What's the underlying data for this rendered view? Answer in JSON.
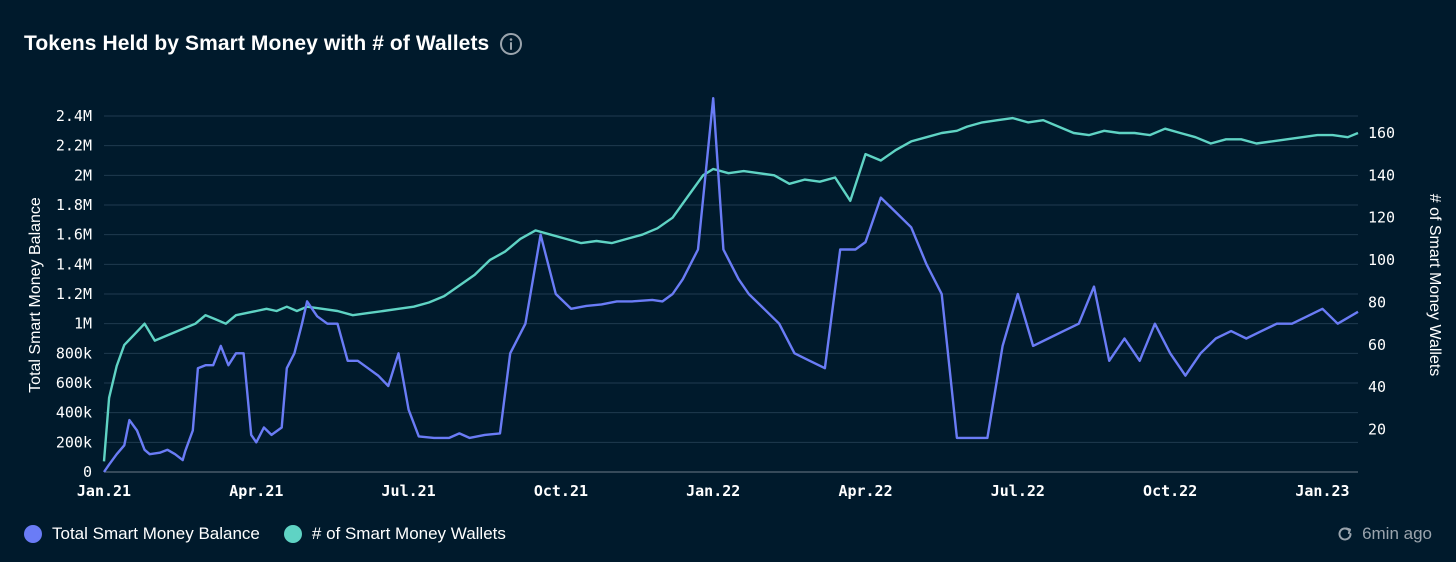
{
  "colors": {
    "background": "#001a2c",
    "balance_series": "#6a7cf6",
    "wallets_series": "#5fd3c4",
    "grid": "#1f3a4f",
    "muted_text": "#9aa4ad"
  },
  "header": {
    "title": "Tokens Held by Smart Money with # of Wallets",
    "info_icon": "info-icon"
  },
  "footer": {
    "updated_text": "6min ago",
    "refresh_icon": "refresh-icon"
  },
  "chart_data": {
    "type": "line",
    "title": "Tokens Held by Smart Money with # of Wallets",
    "xlabel": "",
    "ylabel": "Total Smart Money Balance",
    "y2label": "# of Smart Money Wallets",
    "x_ticks": [
      "Jan.21",
      "Apr.21",
      "Jul.21",
      "Oct.21",
      "Jan.22",
      "Apr.22",
      "Jul.22",
      "Oct.22",
      "Jan.23"
    ],
    "x_range": [
      0,
      24.7
    ],
    "ylim": [
      0,
      2400000
    ],
    "y_ticks": [
      0,
      200000,
      400000,
      600000,
      800000,
      1000000,
      1200000,
      1400000,
      1600000,
      1800000,
      2000000,
      2200000,
      2400000
    ],
    "y_tick_labels": [
      "0",
      "200k",
      "400k",
      "600k",
      "800k",
      "1M",
      "1.2M",
      "1.4M",
      "1.6M",
      "1.8M",
      "2M",
      "2.2M",
      "2.4M"
    ],
    "y2lim": [
      0,
      168
    ],
    "y2_ticks": [
      20,
      40,
      60,
      80,
      100,
      120,
      140,
      160
    ],
    "y2_tick_labels": [
      "20",
      "40",
      "60",
      "80",
      "100",
      "120",
      "140",
      "160"
    ],
    "grid": true,
    "legend": "bottom-left",
    "series": [
      {
        "name": "Total Smart Money Balance",
        "axis": "left",
        "x": [
          0,
          0.1,
          0.25,
          0.4,
          0.5,
          0.65,
          0.8,
          0.9,
          1.1,
          1.25,
          1.4,
          1.55,
          1.6,
          1.75,
          1.85,
          2.0,
          2.15,
          2.3,
          2.45,
          2.6,
          2.75,
          2.9,
          3.0,
          3.15,
          3.3,
          3.5,
          3.6,
          3.75,
          3.9,
          4.0,
          4.2,
          4.4,
          4.6,
          4.8,
          5.0,
          5.2,
          5.4,
          5.6,
          5.8,
          6.0,
          6.2,
          6.5,
          6.8,
          7.0,
          7.2,
          7.5,
          7.8,
          8.0,
          8.3,
          8.6,
          8.9,
          9.2,
          9.5,
          9.8,
          10.1,
          10.4,
          10.8,
          11.0,
          11.2,
          11.4,
          11.7,
          12.0,
          12.2,
          12.5,
          12.7,
          13.0,
          13.3,
          13.6,
          13.9,
          14.2,
          14.5,
          14.8,
          15.0,
          15.3,
          15.6,
          15.9,
          16.2,
          16.5,
          16.8,
          17.1,
          17.4,
          17.7,
          18.0,
          18.3,
          18.6,
          18.9,
          19.2,
          19.5,
          19.8,
          20.1,
          20.4,
          20.7,
          21.0,
          21.3,
          21.6,
          21.9,
          22.2,
          22.5,
          22.8,
          23.1,
          23.4,
          23.7,
          24.0,
          24.3,
          24.7
        ],
        "values": [
          0,
          50000,
          120000,
          180000,
          350000,
          280000,
          150000,
          120000,
          130000,
          150000,
          120000,
          80000,
          140000,
          280000,
          700000,
          720000,
          720000,
          850000,
          720000,
          800000,
          800000,
          250000,
          200000,
          300000,
          250000,
          300000,
          700000,
          800000,
          1000000,
          1150000,
          1050000,
          1000000,
          1000000,
          750000,
          750000,
          700000,
          650000,
          580000,
          800000,
          420000,
          240000,
          230000,
          230000,
          260000,
          230000,
          250000,
          260000,
          800000,
          1000000,
          1600000,
          1200000,
          1100000,
          1120000,
          1130000,
          1150000,
          1150000,
          1160000,
          1150000,
          1200000,
          1300000,
          1500000,
          2520000,
          1500000,
          1300000,
          1200000,
          1100000,
          1000000,
          800000,
          750000,
          700000,
          1500000,
          1500000,
          1550000,
          1850000,
          1750000,
          1650000,
          1400000,
          1200000,
          230000,
          230000,
          230000,
          850000,
          1200000,
          850000,
          900000,
          950000,
          1000000,
          1250000,
          750000,
          900000,
          750000,
          1000000,
          800000,
          650000,
          800000,
          900000,
          950000,
          900000,
          950000,
          1000000,
          1000000,
          1050000,
          1100000,
          1000000,
          1080000
        ]
      },
      {
        "name": "# of Smart Money Wallets",
        "axis": "right",
        "x": [
          0,
          0.1,
          0.25,
          0.4,
          0.6,
          0.8,
          1.0,
          1.2,
          1.4,
          1.6,
          1.8,
          2.0,
          2.2,
          2.4,
          2.6,
          2.8,
          3.0,
          3.2,
          3.4,
          3.6,
          3.8,
          4.0,
          4.3,
          4.6,
          4.9,
          5.2,
          5.5,
          5.8,
          6.1,
          6.4,
          6.7,
          7.0,
          7.3,
          7.6,
          7.9,
          8.2,
          8.5,
          8.8,
          9.1,
          9.4,
          9.7,
          10.0,
          10.3,
          10.6,
          10.9,
          11.2,
          11.5,
          11.8,
          12.0,
          12.3,
          12.6,
          12.9,
          13.2,
          13.5,
          13.8,
          14.1,
          14.4,
          14.7,
          15.0,
          15.3,
          15.6,
          15.9,
          16.2,
          16.5,
          16.8,
          17.0,
          17.3,
          17.6,
          17.9,
          18.2,
          18.5,
          18.8,
          19.1,
          19.4,
          19.7,
          20.0,
          20.3,
          20.6,
          20.9,
          21.2,
          21.5,
          21.8,
          22.1,
          22.4,
          22.7,
          23.0,
          23.3,
          23.6,
          23.9,
          24.2,
          24.5,
          24.7
        ],
        "values": [
          5,
          35,
          50,
          60,
          65,
          70,
          62,
          64,
          66,
          68,
          70,
          74,
          72,
          70,
          74,
          75,
          76,
          77,
          76,
          78,
          76,
          78,
          77,
          76,
          74,
          75,
          76,
          77,
          78,
          80,
          83,
          88,
          93,
          100,
          104,
          110,
          114,
          112,
          110,
          108,
          109,
          108,
          110,
          112,
          115,
          120,
          130,
          140,
          143,
          141,
          142,
          141,
          140,
          136,
          138,
          137,
          139,
          128,
          150,
          147,
          152,
          156,
          158,
          160,
          161,
          163,
          165,
          166,
          167,
          165,
          166,
          163,
          160,
          159,
          161,
          160,
          160,
          159,
          162,
          160,
          158,
          155,
          157,
          157,
          155,
          156,
          157,
          158,
          159,
          159,
          158,
          160
        ]
      }
    ]
  }
}
